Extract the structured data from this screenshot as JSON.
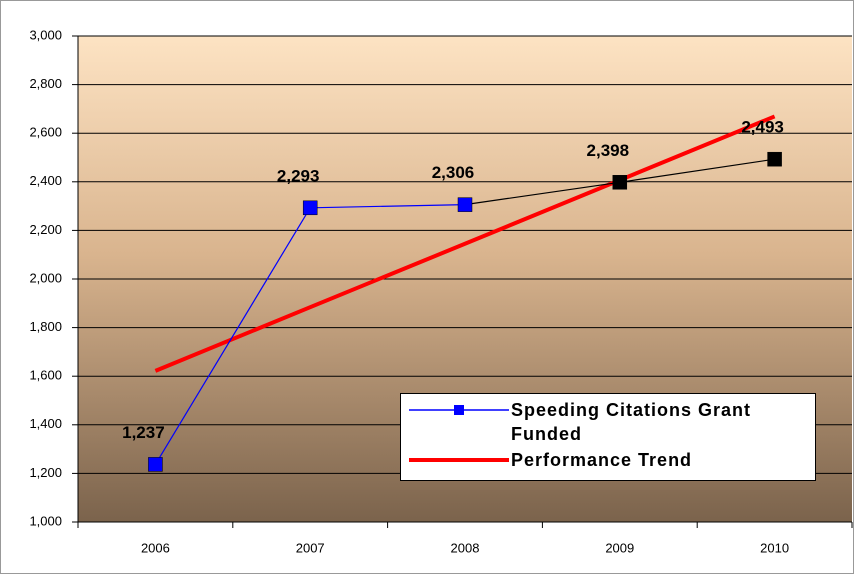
{
  "chart_data": {
    "type": "line",
    "categories": [
      "2006",
      "2007",
      "2008",
      "2009",
      "2010"
    ],
    "series": [
      {
        "name": "Speeding Citations Grant Funded",
        "color": "#0000ff",
        "point_colors": [
          "#0000ff",
          "#0000ff",
          "#0000ff",
          "#000000",
          "#000000"
        ],
        "values": [
          1237,
          2293,
          2306,
          2398,
          2493
        ],
        "value_labels": [
          "1,237",
          "2,293",
          "2,306",
          "2,398",
          "2,493"
        ]
      },
      {
        "name": "Performance Trend",
        "color": "#ff0000",
        "values": [
          1622,
          1884,
          2145,
          2407,
          2669
        ]
      }
    ],
    "ylim": [
      1000,
      3000
    ],
    "yticks": [
      {
        "value": 1000,
        "label": "1,000"
      },
      {
        "value": 1200,
        "label": "1,200"
      },
      {
        "value": 1400,
        "label": "1,400"
      },
      {
        "value": 1600,
        "label": "1,600"
      },
      {
        "value": 1800,
        "label": "1,800"
      },
      {
        "value": 2000,
        "label": "2,000"
      },
      {
        "value": 2200,
        "label": "2,200"
      },
      {
        "value": 2400,
        "label": "2,400"
      },
      {
        "value": 2600,
        "label": "2,600"
      },
      {
        "value": 2800,
        "label": "2,800"
      },
      {
        "value": 3000,
        "label": "3,000"
      }
    ],
    "grid": true,
    "legend": "lower-right"
  }
}
